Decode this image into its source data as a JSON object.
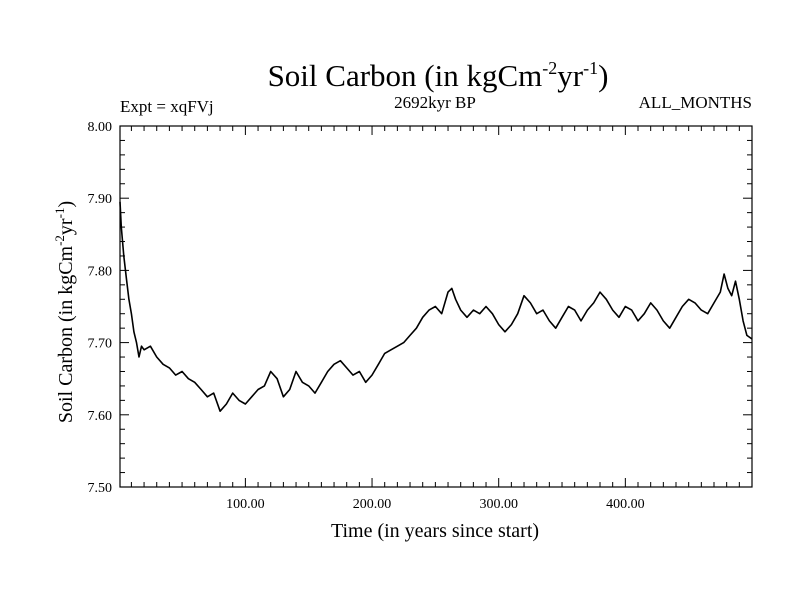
{
  "chart_data": {
    "type": "line",
    "title": "Soil Carbon (in kgCm",
    "title_units": {
      "sup1": "-2",
      "mid": "yr",
      "sup2": "-1",
      "close": ")"
    },
    "subtitle_left": "Expt = xqFVj",
    "subtitle_center": "2692kyr BP",
    "subtitle_right": "ALL_MONTHS",
    "xlabel": "Time (in years since start)",
    "ylabel": "Soil Carbon (in kgCm",
    "ylabel_units": {
      "sup1": "-2",
      "mid": "yr",
      "sup2": "-1",
      "close": ")"
    },
    "xlim": [
      1,
      500
    ],
    "ylim": [
      7.5,
      8.0
    ],
    "x_ticks": [
      100,
      200,
      300,
      400
    ],
    "x_tick_labels": [
      "100.00",
      "200.00",
      "300.00",
      "400.00"
    ],
    "y_ticks": [
      7.5,
      7.6,
      7.7,
      7.8,
      7.9,
      8.0
    ],
    "y_tick_labels": [
      "7.50",
      "7.60",
      "7.70",
      "7.80",
      "7.90",
      "8.00"
    ],
    "series": [
      {
        "name": "Soil Carbon",
        "color": "#000000",
        "x": [
          1,
          2,
          4,
          6,
          8,
          10,
          12,
          14,
          16,
          18,
          20,
          25,
          30,
          35,
          40,
          45,
          50,
          55,
          60,
          65,
          70,
          75,
          80,
          85,
          90,
          95,
          100,
          105,
          110,
          115,
          120,
          125,
          130,
          135,
          140,
          145,
          150,
          155,
          160,
          165,
          170,
          175,
          180,
          185,
          190,
          195,
          200,
          205,
          210,
          215,
          220,
          225,
          230,
          235,
          240,
          245,
          250,
          255,
          260,
          263,
          266,
          270,
          275,
          280,
          285,
          290,
          295,
          300,
          305,
          310,
          315,
          320,
          325,
          330,
          335,
          340,
          345,
          350,
          355,
          360,
          365,
          370,
          375,
          380,
          385,
          390,
          395,
          400,
          405,
          410,
          415,
          420,
          425,
          430,
          435,
          440,
          445,
          450,
          455,
          460,
          465,
          470,
          475,
          478,
          481,
          484,
          487,
          490,
          493,
          496,
          500
        ],
        "values": [
          7.895,
          7.86,
          7.82,
          7.79,
          7.76,
          7.74,
          7.715,
          7.7,
          7.68,
          7.695,
          7.69,
          7.695,
          7.68,
          7.67,
          7.665,
          7.655,
          7.66,
          7.65,
          7.645,
          7.635,
          7.625,
          7.63,
          7.605,
          7.615,
          7.63,
          7.62,
          7.615,
          7.625,
          7.635,
          7.64,
          7.66,
          7.65,
          7.625,
          7.635,
          7.66,
          7.645,
          7.64,
          7.63,
          7.645,
          7.66,
          7.67,
          7.675,
          7.665,
          7.655,
          7.66,
          7.645,
          7.655,
          7.67,
          7.685,
          7.69,
          7.695,
          7.7,
          7.71,
          7.72,
          7.735,
          7.745,
          7.75,
          7.74,
          7.77,
          7.775,
          7.76,
          7.745,
          7.735,
          7.745,
          7.74,
          7.75,
          7.74,
          7.725,
          7.715,
          7.725,
          7.74,
          7.765,
          7.755,
          7.74,
          7.745,
          7.73,
          7.72,
          7.735,
          7.75,
          7.745,
          7.73,
          7.745,
          7.755,
          7.77,
          7.76,
          7.745,
          7.735,
          7.75,
          7.745,
          7.73,
          7.74,
          7.755,
          7.745,
          7.73,
          7.72,
          7.735,
          7.75,
          7.76,
          7.755,
          7.745,
          7.74,
          7.755,
          7.77,
          7.795,
          7.775,
          7.765,
          7.785,
          7.76,
          7.73,
          7.71,
          7.705
        ]
      }
    ]
  }
}
